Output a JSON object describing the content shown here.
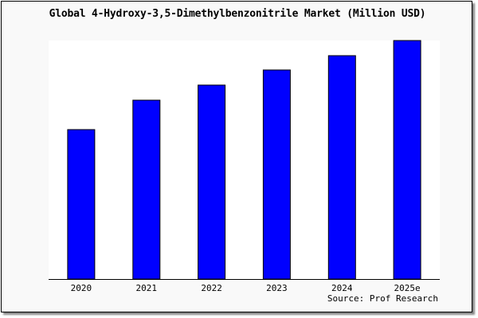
{
  "chart_data": {
    "type": "bar",
    "title": "Global 4-Hydroxy-3,5-Dimethylbenzonitrile Market (Million USD)",
    "categories": [
      "2020",
      "2021",
      "2022",
      "2023",
      "2024",
      "2025e"
    ],
    "values": [
      188,
      225,
      244,
      263,
      281,
      300
    ],
    "ylim": [
      0,
      300
    ],
    "xlabel": "",
    "ylabel": "",
    "grid": false,
    "bar_color": "#0000ff",
    "source": "Source: Prof Research"
  }
}
